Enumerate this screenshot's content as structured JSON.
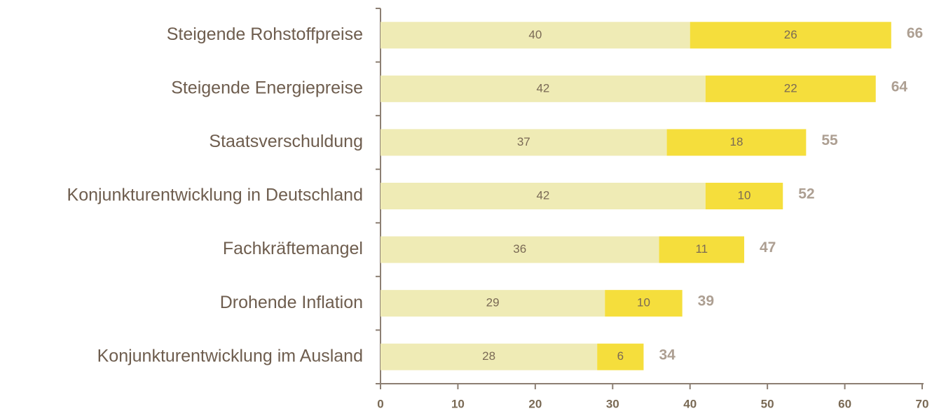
{
  "chart_data": {
    "type": "stacked_barh",
    "categories": [
      "Steigende Rohstoffpreise",
      "Steigende Energiepreise",
      "Staatsverschuldung",
      "Konjunkturentwicklung in Deutschland",
      "Fachkräftemangel",
      "Drohende Inflation",
      "Konjunkturentwicklung im Ausland"
    ],
    "series": [
      {
        "color": "#efebb5",
        "values": [
          40,
          42,
          37,
          42,
          36,
          29,
          28
        ]
      },
      {
        "color": "#f5de3c",
        "values": [
          26,
          22,
          18,
          10,
          11,
          10,
          6
        ]
      }
    ],
    "totals": [
      66,
      64,
      55,
      52,
      47,
      39,
      34
    ],
    "xlim": [
      0,
      70
    ],
    "xticks": [
      0,
      10,
      20,
      30,
      40,
      50,
      60,
      70
    ]
  }
}
